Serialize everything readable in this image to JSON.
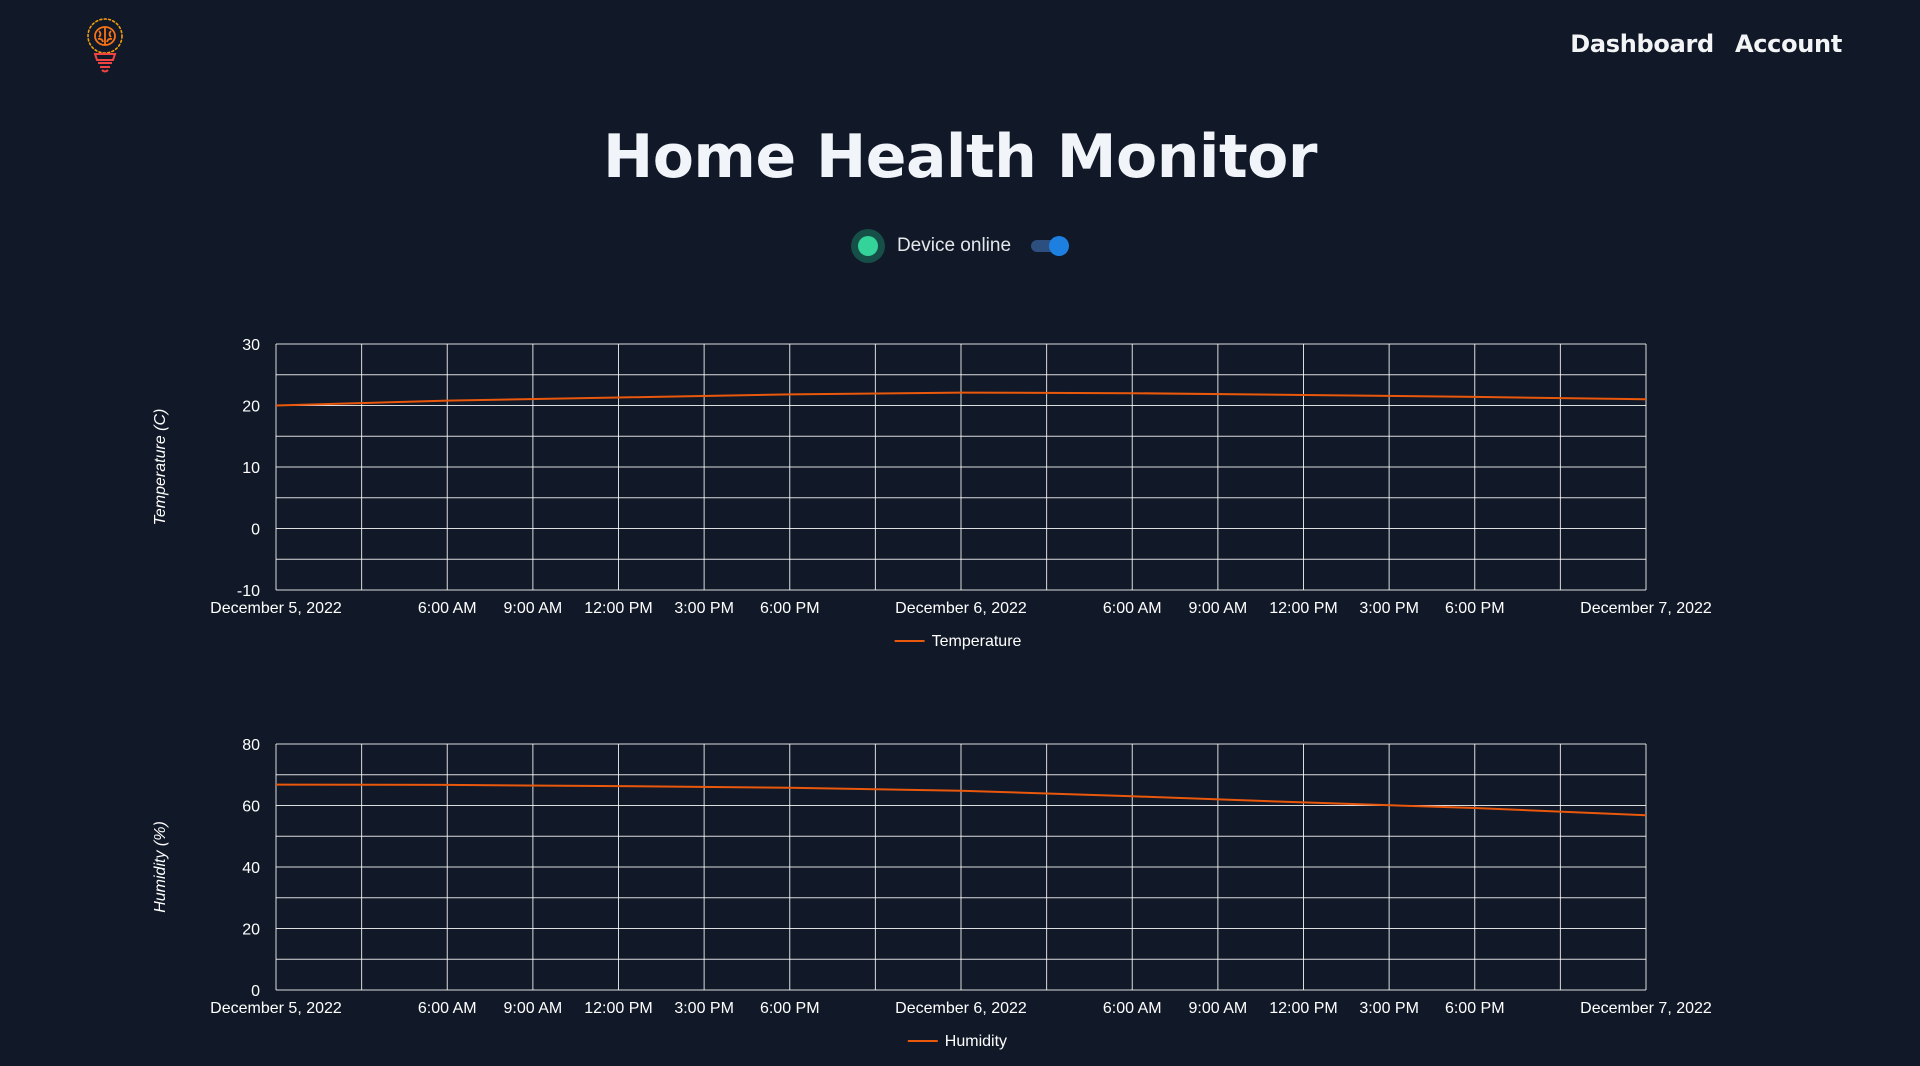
{
  "header": {
    "logo_icon": "brain-lightbulb-icon",
    "nav": [
      {
        "label": "Dashboard"
      },
      {
        "label": "Account"
      }
    ]
  },
  "title": "Home Health Monitor",
  "status": {
    "label": "Device online",
    "online": true,
    "toggle_on": true
  },
  "colors": {
    "background": "#111827",
    "line": "#ea580c",
    "online": "#34d399",
    "toggle": "#1d7fe0",
    "grid": "#ffffff"
  },
  "chart_data": [
    {
      "type": "line",
      "ylabel": "Temperature (C)",
      "xlabel": "",
      "xlim": [
        "2022-12-05 00:00",
        "2022-12-07 00:00"
      ],
      "ylim": [
        -10,
        30
      ],
      "yticks": [
        30,
        20,
        10,
        0,
        -10
      ],
      "xticks": [
        "2022-12-05 00:00",
        "2022-12-05 06:00",
        "2022-12-05 09:00",
        "2022-12-05 12:00",
        "2022-12-05 15:00",
        "2022-12-05 18:00",
        "2022-12-06 00:00",
        "2022-12-06 06:00",
        "2022-12-06 09:00",
        "2022-12-06 12:00",
        "2022-12-06 15:00",
        "2022-12-06 18:00",
        "2022-12-07 00:00"
      ],
      "xtick_labels": [
        "December 5, 2022",
        "6:00 AM",
        "9:00 AM",
        "12:00 PM",
        "3:00 PM",
        "6:00 PM",
        "December 6, 2022",
        "6:00 AM",
        "9:00 AM",
        "12:00 PM",
        "3:00 PM",
        "6:00 PM",
        "December 7, 2022"
      ],
      "grid": true,
      "legend_position": "bottom-center",
      "series": [
        {
          "name": "Temperature",
          "color": "#ea580c",
          "x": [
            "2022-12-05 00:00",
            "2022-12-05 06:00",
            "2022-12-05 12:00",
            "2022-12-05 18:00",
            "2022-12-06 00:00",
            "2022-12-06 06:00",
            "2022-12-06 12:00",
            "2022-12-06 18:00",
            "2022-12-07 00:00"
          ],
          "y": [
            20.0,
            20.8,
            21.3,
            21.8,
            22.1,
            22.0,
            21.7,
            21.4,
            21.0
          ]
        }
      ]
    },
    {
      "type": "line",
      "ylabel": "Humidity (%)",
      "xlabel": "",
      "xlim": [
        "2022-12-05 00:00",
        "2022-12-07 00:00"
      ],
      "ylim": [
        0,
        80
      ],
      "yticks": [
        80,
        60,
        40,
        20,
        0
      ],
      "xticks": [
        "2022-12-05 00:00",
        "2022-12-05 06:00",
        "2022-12-05 09:00",
        "2022-12-05 12:00",
        "2022-12-05 15:00",
        "2022-12-05 18:00",
        "2022-12-06 00:00",
        "2022-12-06 06:00",
        "2022-12-06 09:00",
        "2022-12-06 12:00",
        "2022-12-06 15:00",
        "2022-12-06 18:00",
        "2022-12-07 00:00"
      ],
      "xtick_labels": [
        "December 5, 2022",
        "6:00 AM",
        "9:00 AM",
        "12:00 PM",
        "3:00 PM",
        "6:00 PM",
        "December 6, 2022",
        "6:00 AM",
        "9:00 AM",
        "12:00 PM",
        "3:00 PM",
        "6:00 PM",
        "December 7, 2022"
      ],
      "grid": true,
      "legend_position": "bottom-center",
      "series": [
        {
          "name": "Humidity",
          "color": "#ea580c",
          "x": [
            "2022-12-05 00:00",
            "2022-12-05 06:00",
            "2022-12-05 12:00",
            "2022-12-05 18:00",
            "2022-12-06 00:00",
            "2022-12-06 06:00",
            "2022-12-06 12:00",
            "2022-12-06 18:00",
            "2022-12-07 00:00"
          ],
          "y": [
            66.8,
            66.7,
            66.3,
            65.8,
            64.8,
            63.0,
            61.0,
            59.2,
            56.8
          ]
        }
      ]
    }
  ]
}
